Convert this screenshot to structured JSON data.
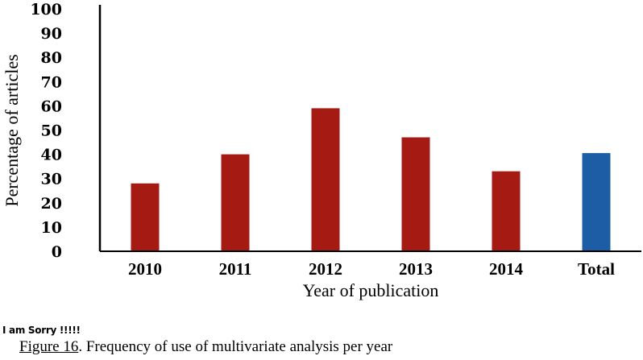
{
  "chart_data": {
    "type": "bar",
    "categories": [
      "2010",
      "2011",
      "2012",
      "2013",
      "2014",
      "Total"
    ],
    "values": [
      28,
      40,
      59,
      47,
      33,
      40.5
    ],
    "colors": [
      "#a51b14",
      "#a51b14",
      "#a51b14",
      "#a51b14",
      "#a51b14",
      "#1d5da6"
    ],
    "xlabel": "Year of publication",
    "ylabel": "Percentage of articles",
    "ylim": [
      0,
      100
    ],
    "yticks": [
      0,
      10,
      20,
      30,
      40,
      50,
      60,
      70,
      80,
      90,
      100
    ],
    "grid": false
  },
  "note": "I am Sorry !!!!!",
  "caption": {
    "ref": "Figure 16",
    "text": ". Frequency of use of multivariate analysis per year"
  }
}
